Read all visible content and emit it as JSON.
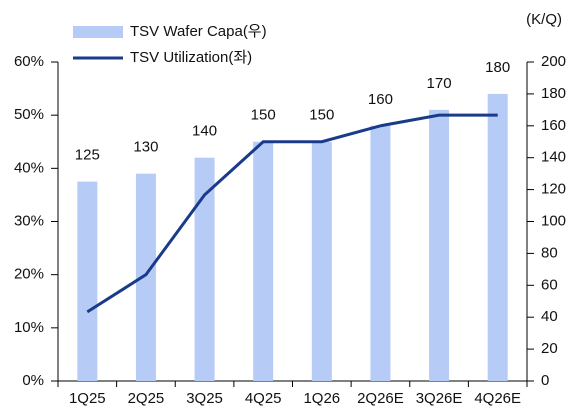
{
  "chart_data": {
    "type": "bar",
    "unit_label": "(K/Q)",
    "categories": [
      "1Q25",
      "2Q25",
      "3Q25",
      "4Q25",
      "1Q26",
      "2Q26E",
      "3Q26E",
      "4Q26E"
    ],
    "series": [
      {
        "name": "TSV Wafer Capa(우)",
        "type": "bar",
        "axis": "y2",
        "color": "#b7cbf7",
        "values": [
          125,
          130,
          140,
          150,
          150,
          160,
          170,
          180
        ]
      },
      {
        "name": "TSV Utilization(좌)",
        "type": "line",
        "axis": "y",
        "color": "#1a3a8a",
        "values": [
          13,
          20,
          35,
          45,
          45,
          48,
          50,
          50
        ]
      }
    ],
    "ylim": [
      0,
      60
    ],
    "yticks": [
      {
        "value": 0,
        "label": "0%"
      },
      {
        "value": 10,
        "label": "10%"
      },
      {
        "value": 20,
        "label": "20%"
      },
      {
        "value": 30,
        "label": "30%"
      },
      {
        "value": 40,
        "label": "40%"
      },
      {
        "value": 50,
        "label": "50%"
      },
      {
        "value": 60,
        "label": "60%"
      }
    ],
    "y2lim": [
      0,
      200
    ],
    "y2ticks": [
      0,
      20,
      40,
      60,
      80,
      100,
      120,
      140,
      160,
      180,
      200
    ],
    "data_labels": true
  }
}
